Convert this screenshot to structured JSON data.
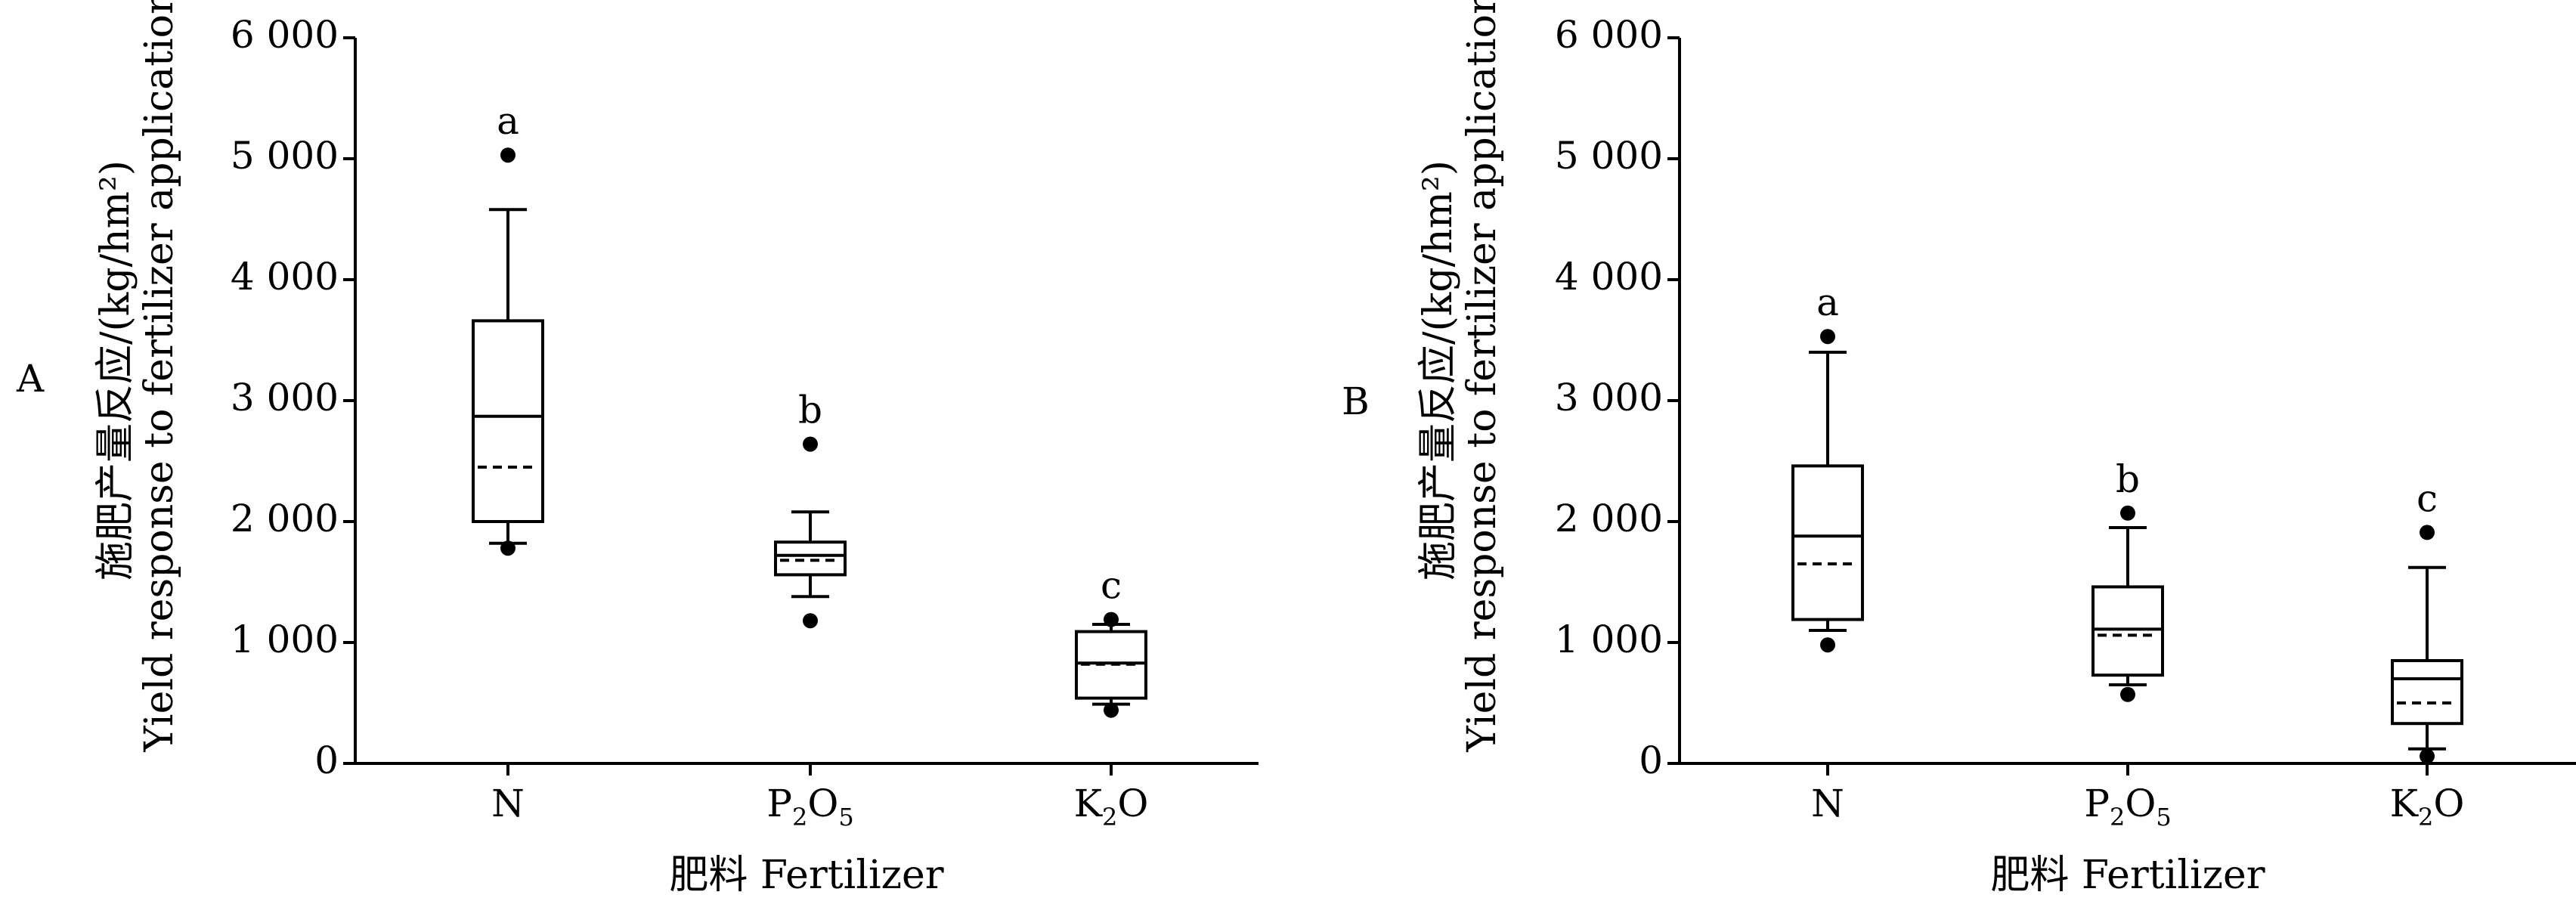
{
  "chart_data": [
    {
      "type": "box",
      "panel_label": "A",
      "categories": [
        "N",
        "P2O5",
        "K2O"
      ],
      "category_labels": [
        {
          "main": "N",
          "parts": [
            {
              "t": "N",
              "sub": false
            }
          ]
        },
        {
          "main": "P2O5",
          "parts": [
            {
              "t": "P",
              "sub": false
            },
            {
              "t": "2",
              "sub": true
            },
            {
              "t": "O",
              "sub": false
            },
            {
              "t": "5",
              "sub": true
            }
          ]
        },
        {
          "main": "K2O",
          "parts": [
            {
              "t": "K",
              "sub": false
            },
            {
              "t": "2",
              "sub": true
            },
            {
              "t": "O",
              "sub": false
            }
          ]
        }
      ],
      "ylim": [
        0,
        6000
      ],
      "yticks": [
        0,
        1000,
        2000,
        3000,
        4000,
        5000,
        6000
      ],
      "ytick_labels": [
        "0",
        "1 000",
        "2 000",
        "3 000",
        "4 000",
        "5 000",
        "6 000"
      ],
      "ylabel_cn": "施肥产量反应/(kg/hm²)",
      "ylabel_en": "Yield response to fertilizer application",
      "xlabel": "肥料  Fertilizer",
      "boxes": [
        {
          "category": "N",
          "whisker_low": 1820,
          "q1": 2000,
          "median": 2870,
          "mean": 2450,
          "q3": 3660,
          "whisker_high": 4580,
          "outliers": [
            1780,
            5030
          ],
          "sig": "a"
        },
        {
          "category": "P2O5",
          "whisker_low": 1380,
          "q1": 1560,
          "median": 1720,
          "mean": 1680,
          "q3": 1830,
          "whisker_high": 2080,
          "outliers": [
            1180,
            2640
          ],
          "sig": "b"
        },
        {
          "category": "K2O",
          "whisker_low": 490,
          "q1": 540,
          "median": 830,
          "mean": 820,
          "q3": 1090,
          "whisker_high": 1150,
          "outliers": [
            440,
            1190
          ],
          "sig": "c"
        }
      ],
      "grid": false
    },
    {
      "type": "box",
      "panel_label": "B",
      "categories": [
        "N",
        "P2O5",
        "K2O"
      ],
      "category_labels": [
        {
          "main": "N",
          "parts": [
            {
              "t": "N",
              "sub": false
            }
          ]
        },
        {
          "main": "P2O5",
          "parts": [
            {
              "t": "P",
              "sub": false
            },
            {
              "t": "2",
              "sub": true
            },
            {
              "t": "O",
              "sub": false
            },
            {
              "t": "5",
              "sub": true
            }
          ]
        },
        {
          "main": "K2O",
          "parts": [
            {
              "t": "K",
              "sub": false
            },
            {
              "t": "2",
              "sub": true
            },
            {
              "t": "O",
              "sub": false
            }
          ]
        }
      ],
      "ylim": [
        0,
        6000
      ],
      "yticks": [
        0,
        1000,
        2000,
        3000,
        4000,
        5000,
        6000
      ],
      "ytick_labels": [
        "0",
        "1 000",
        "2 000",
        "3 000",
        "4 000",
        "5 000",
        "6 000"
      ],
      "ylabel_cn": "施肥产量反应/(kg/hm²)",
      "ylabel_en": "Yield response to fertilizer application",
      "xlabel": "肥料  Fertilizer",
      "boxes": [
        {
          "category": "N",
          "whisker_low": 1100,
          "q1": 1190,
          "median": 1880,
          "mean": 1650,
          "q3": 2460,
          "whisker_high": 3400,
          "outliers": [
            980,
            3530
          ],
          "sig": "a"
        },
        {
          "category": "P2O5",
          "whisker_low": 650,
          "q1": 730,
          "median": 1110,
          "mean": 1060,
          "q3": 1460,
          "whisker_high": 1950,
          "outliers": [
            570,
            2070
          ],
          "sig": "b"
        },
        {
          "category": "K2O",
          "whisker_low": 120,
          "q1": 330,
          "median": 700,
          "mean": 500,
          "q3": 850,
          "whisker_high": 1620,
          "outliers": [
            60,
            1910
          ],
          "sig": "c"
        }
      ],
      "grid": false
    }
  ]
}
